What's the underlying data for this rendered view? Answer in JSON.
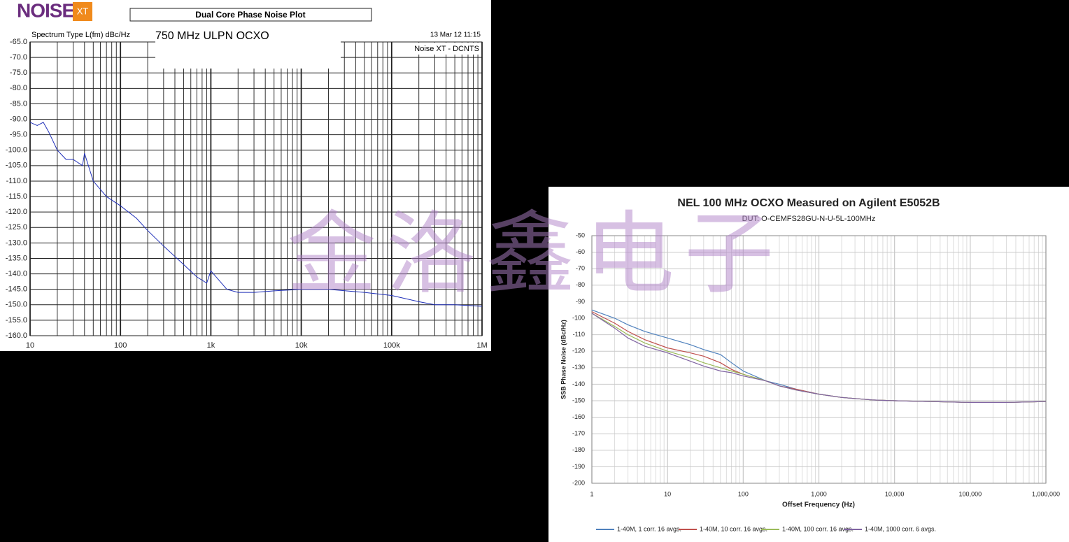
{
  "watermark": "金洛鑫电子",
  "chart_data": [
    {
      "type": "line",
      "logo": "NOISE",
      "logo_badge": "XT",
      "title": "Dual Core Phase Noise Plot",
      "subtitle": "750 MHz ULPN OCXO",
      "y_axis_label": "Spectrum Type  L(fm) dBc/Hz",
      "timestamp": "13 Mar 12    11:15",
      "annotation": "Noise XT - DCNTS",
      "x_scale": "log",
      "grid": true,
      "color": "#1f2fb8",
      "xlim": [
        10,
        1000000
      ],
      "xticks": [
        10,
        100,
        {
          "value": 1000,
          "label": "1k"
        },
        {
          "value": 10000,
          "label": "10k"
        },
        {
          "value": 100000,
          "label": "100k"
        },
        {
          "value": 1000000,
          "label": "1M"
        }
      ],
      "ylim": [
        -65,
        -160
      ],
      "yticks": [
        {
          "value": -65,
          "label": "-65.0"
        },
        {
          "value": -70,
          "label": "-70.0"
        },
        {
          "value": -75,
          "label": "-75.0"
        },
        {
          "value": -80,
          "label": "-80.0"
        },
        {
          "value": -85,
          "label": "-85.0"
        },
        {
          "value": -90,
          "label": "-90.0"
        },
        {
          "value": -95,
          "label": "-95.0"
        },
        {
          "value": -100,
          "label": "-100.0"
        },
        {
          "value": -105,
          "label": "-105.0"
        },
        {
          "value": -110,
          "label": "-110.0"
        },
        {
          "value": -115,
          "label": "-115.0"
        },
        {
          "value": -120,
          "label": "-120.0"
        },
        {
          "value": -125,
          "label": "-125.0"
        },
        {
          "value": -130,
          "label": "-130.0"
        },
        {
          "value": -135,
          "label": "-135.0"
        },
        {
          "value": -140,
          "label": "-140.0"
        },
        {
          "value": -145,
          "label": "-145.0"
        },
        {
          "value": -150,
          "label": "-150.0"
        },
        {
          "value": -155,
          "label": "-155.0"
        },
        {
          "value": -160,
          "label": "-160.0"
        }
      ],
      "x": [
        10,
        12,
        14,
        16,
        20,
        25,
        30,
        38,
        40,
        50,
        70,
        100,
        150,
        200,
        300,
        500,
        700,
        900,
        1000,
        1500,
        2000,
        3000,
        5000,
        10000,
        20000,
        50000,
        100000,
        200000,
        300000,
        500000,
        1000000
      ],
      "values": [
        -91,
        -92,
        -91,
        -94,
        -100,
        -103,
        -103,
        -105,
        -101,
        -110,
        -115,
        -118,
        -122,
        -126,
        -131,
        -137,
        -141,
        -143,
        -139,
        -145,
        -146,
        -146,
        -145.5,
        -145,
        -145,
        -146,
        -147,
        -149,
        -150,
        -150,
        -150.5
      ]
    },
    {
      "type": "line",
      "title": "NEL 100 MHz OCXO Measured on Agilent E5052B",
      "subtitle": "DUT: O-CEMFS28GU-N-U-5L-100MHz",
      "x_label": "Offset Frequency (Hz)",
      "y_label": "SSB Phase Noise (dBc/Hz)",
      "x_scale": "log",
      "grid": true,
      "legend": "bottom",
      "xlim": [
        1,
        1000000
      ],
      "xticks": [
        1,
        10,
        100,
        {
          "value": 1000,
          "label": "1,000"
        },
        {
          "value": 10000,
          "label": "10,000"
        },
        {
          "value": 100000,
          "label": "100,000"
        },
        {
          "value": 1000000,
          "label": "1,000,000"
        }
      ],
      "ylim": [
        -50,
        -200
      ],
      "yticks": [
        -50,
        -60,
        -70,
        -80,
        -90,
        -100,
        -110,
        -120,
        -130,
        -140,
        -150,
        -160,
        -170,
        -180,
        -190,
        -200
      ],
      "x": [
        1,
        2,
        3,
        5,
        10,
        20,
        30,
        50,
        70,
        100,
        200,
        300,
        500,
        1000,
        2000,
        5000,
        10000,
        30000,
        100000,
        300000,
        1000000
      ],
      "series": [
        {
          "name": "1-40M, 1 corr. 16 avgs.",
          "color": "#4f81bd",
          "values": [
            -95,
            -100,
            -104,
            -108,
            -112,
            -116,
            -119,
            -122,
            -127,
            -132,
            -138,
            -140,
            -143,
            -146,
            -148,
            -149.5,
            -150,
            -150.5,
            -151,
            -151,
            -150.5
          ]
        },
        {
          "name": "1-40M, 10 corr. 16 avgs.",
          "color": "#c0504d",
          "values": [
            -96,
            -103,
            -108,
            -113,
            -118,
            -121,
            -123,
            -127,
            -131,
            -134,
            -138,
            -141,
            -143,
            -146,
            -148,
            -149.5,
            -150,
            -150.5,
            -151,
            -151,
            -150.5
          ]
        },
        {
          "name": "1-40M, 100 corr. 16 avgs.",
          "color": "#9bbb59",
          "values": [
            -97,
            -105,
            -110,
            -115,
            -120,
            -124,
            -127,
            -130,
            -132,
            -134,
            -138,
            -141,
            -143.5,
            -146,
            -148,
            -149.5,
            -150,
            -150.5,
            -151,
            -151,
            -150.5
          ]
        },
        {
          "name": "1-40M, 1000 corr. 6 avgs.",
          "color": "#8064a2",
          "values": [
            -97,
            -106,
            -112,
            -117,
            -121,
            -126,
            -129,
            -132,
            -133,
            -135,
            -138,
            -141,
            -143.5,
            -146,
            -148,
            -149.5,
            -150,
            -150.5,
            -151,
            -151,
            -150.5
          ]
        }
      ]
    }
  ]
}
